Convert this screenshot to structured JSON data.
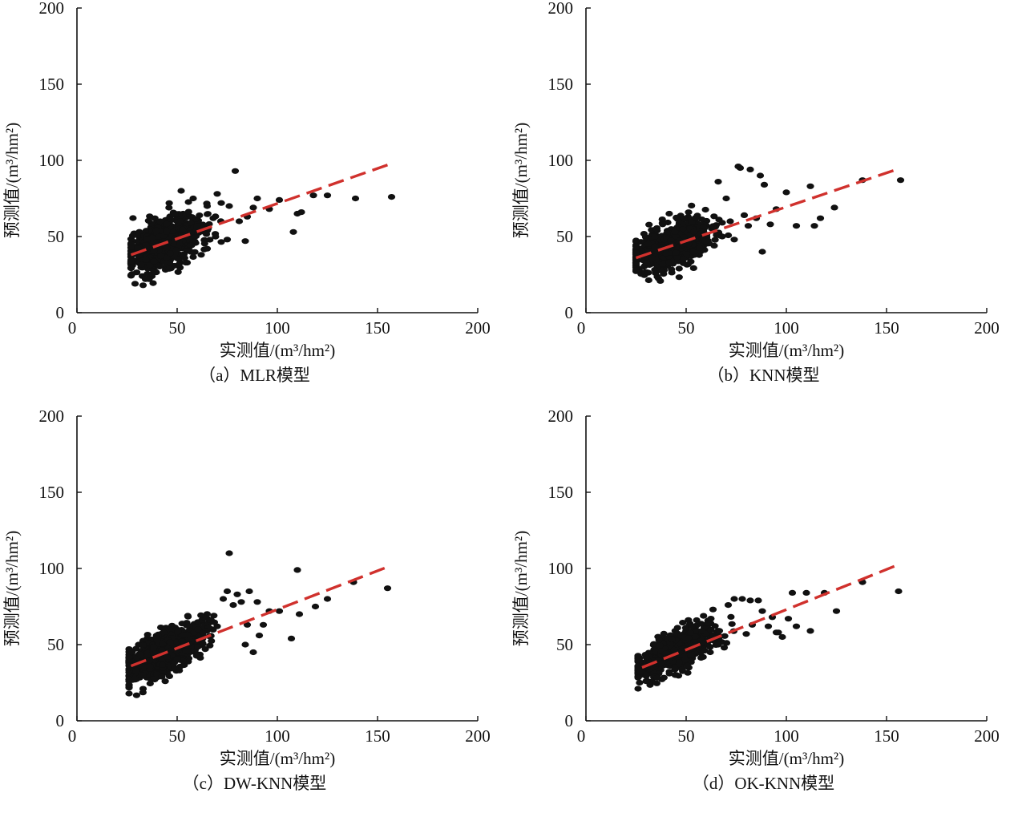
{
  "chart_data": [
    {
      "type": "scatter",
      "title": "（a）MLR模型",
      "xlabel": "实测值/(m³/hm²)",
      "ylabel": "预测值/(m³/hm²)",
      "xlim": [
        0,
        200
      ],
      "ylim": [
        0,
        200
      ],
      "xticks": [
        "0",
        "50",
        "100",
        "150",
        "200"
      ],
      "yticks": [
        "0",
        "50",
        "100",
        "150",
        "200"
      ],
      "fit_line": {
        "x": [
          27,
          155
        ],
        "y": [
          38,
          97
        ],
        "color": "#d0312d",
        "style": "dashed"
      },
      "cloud": {
        "x_mean": 44,
        "x_sd": 9,
        "x_min": 27,
        "x_max": 72,
        "slope": 0.46,
        "intercept": 26,
        "y_sd": 8,
        "count": 700,
        "seed": 11
      },
      "points": [
        [
          79,
          93
        ],
        [
          90,
          75
        ],
        [
          101,
          74
        ],
        [
          112,
          66
        ],
        [
          110,
          65
        ],
        [
          108,
          53
        ],
        [
          118,
          77
        ],
        [
          125,
          77
        ],
        [
          139,
          75
        ],
        [
          157,
          76
        ],
        [
          85,
          63
        ],
        [
          84,
          47
        ],
        [
          88,
          69
        ],
        [
          96,
          68
        ],
        [
          81,
          60
        ],
        [
          76,
          70
        ],
        [
          72,
          72
        ],
        [
          70,
          78
        ],
        [
          68,
          62
        ],
        [
          75,
          48
        ],
        [
          65,
          42
        ],
        [
          62,
          38
        ],
        [
          33,
          18
        ],
        [
          29,
          19
        ],
        [
          36,
          22
        ],
        [
          52,
          80
        ],
        [
          58,
          75
        ]
      ],
      "point_color": "#111111"
    },
    {
      "type": "scatter",
      "title": "（b）KNN模型",
      "xlabel": "实测值/(m³/hm²)",
      "ylabel": "预测值/(m³/hm²)",
      "xlim": [
        0,
        200
      ],
      "ylim": [
        0,
        200
      ],
      "xticks": [
        "0",
        "50",
        "100",
        "150",
        "200"
      ],
      "yticks": [
        "0",
        "50",
        "100",
        "150",
        "200"
      ],
      "fit_line": {
        "x": [
          25,
          155
        ],
        "y": [
          36,
          94
        ],
        "color": "#d0312d",
        "style": "dashed"
      },
      "cloud": {
        "x_mean": 42,
        "x_sd": 10,
        "x_min": 25,
        "x_max": 78,
        "slope": 0.42,
        "intercept": 26,
        "y_sd": 7,
        "count": 700,
        "seed": 23
      },
      "points": [
        [
          76,
          96
        ],
        [
          77,
          95
        ],
        [
          82,
          94
        ],
        [
          87,
          90
        ],
        [
          89,
          84
        ],
        [
          112,
          83
        ],
        [
          100,
          79
        ],
        [
          105,
          57
        ],
        [
          114,
          57
        ],
        [
          117,
          62
        ],
        [
          124,
          69
        ],
        [
          138,
          87
        ],
        [
          157,
          87
        ],
        [
          95,
          68
        ],
        [
          92,
          58
        ],
        [
          88,
          40
        ],
        [
          85,
          62
        ],
        [
          81,
          57
        ],
        [
          79,
          64
        ],
        [
          66,
          86
        ],
        [
          70,
          75
        ],
        [
          72,
          60
        ],
        [
          74,
          48
        ],
        [
          68,
          50
        ],
        [
          64,
          44
        ]
      ],
      "point_color": "#111111"
    },
    {
      "type": "scatter",
      "title": "（c）DW-KNN模型",
      "xlabel": "实测值/(m³/hm²)",
      "ylabel": "预测值/(m³/hm²)",
      "xlim": [
        0,
        200
      ],
      "ylim": [
        0,
        200
      ],
      "xticks": [
        "0",
        "50",
        "100",
        "150",
        "200"
      ],
      "yticks": [
        "0",
        "50",
        "100",
        "150",
        "200"
      ],
      "fit_line": {
        "x": [
          27,
          155
        ],
        "y": [
          36,
          101
        ],
        "color": "#d0312d",
        "style": "dashed"
      },
      "cloud": {
        "x_mean": 44,
        "x_sd": 10,
        "x_min": 26,
        "x_max": 72,
        "slope": 0.58,
        "intercept": 20,
        "y_sd": 7,
        "count": 720,
        "seed": 37
      },
      "points": [
        [
          76,
          110
        ],
        [
          110,
          99
        ],
        [
          90,
          78
        ],
        [
          86,
          85
        ],
        [
          82,
          78
        ],
        [
          80,
          83
        ],
        [
          78,
          76
        ],
        [
          75,
          85
        ],
        [
          73,
          80
        ],
        [
          85,
          63
        ],
        [
          93,
          63
        ],
        [
          96,
          72
        ],
        [
          101,
          72
        ],
        [
          107,
          54
        ],
        [
          111,
          70
        ],
        [
          119,
          75
        ],
        [
          125,
          80
        ],
        [
          138,
          91
        ],
        [
          155,
          87
        ],
        [
          88,
          45
        ],
        [
          84,
          50
        ],
        [
          91,
          56
        ],
        [
          70,
          62
        ],
        [
          67,
          66
        ],
        [
          33,
          21
        ],
        [
          29,
          27
        ]
      ],
      "point_color": "#111111"
    },
    {
      "type": "scatter",
      "title": "（d）OK-KNN模型",
      "xlabel": "实测值/(m³/hm²)",
      "ylabel": "预测值/(m³/hm²)",
      "xlim": [
        0,
        200
      ],
      "ylim": [
        0,
        200
      ],
      "xticks": [
        "0",
        "50",
        "100",
        "150",
        "200"
      ],
      "yticks": [
        "0",
        "50",
        "100",
        "150",
        "200"
      ],
      "fit_line": {
        "x": [
          28,
          155
        ],
        "y": [
          35,
          102
        ],
        "color": "#d0312d",
        "style": "dashed"
      },
      "cloud": {
        "x_mean": 45,
        "x_sd": 10,
        "x_min": 26,
        "x_max": 76,
        "slope": 0.62,
        "intercept": 18,
        "y_sd": 6,
        "count": 720,
        "seed": 53
      },
      "points": [
        [
          82,
          79
        ],
        [
          86,
          79
        ],
        [
          78,
          80
        ],
        [
          74,
          80
        ],
        [
          71,
          76
        ],
        [
          88,
          72
        ],
        [
          93,
          68
        ],
        [
          95,
          58
        ],
        [
          96,
          58
        ],
        [
          103,
          84
        ],
        [
          110,
          84
        ],
        [
          112,
          59
        ],
        [
          101,
          67
        ],
        [
          105,
          62
        ],
        [
          119,
          84
        ],
        [
          125,
          72
        ],
        [
          138,
          91
        ],
        [
          156,
          85
        ],
        [
          98,
          55
        ],
        [
          91,
          62
        ],
        [
          83,
          63
        ],
        [
          80,
          57
        ],
        [
          69,
          48
        ],
        [
          66,
          50
        ],
        [
          62,
          45
        ],
        [
          30,
          26
        ]
      ],
      "point_color": "#111111"
    }
  ]
}
